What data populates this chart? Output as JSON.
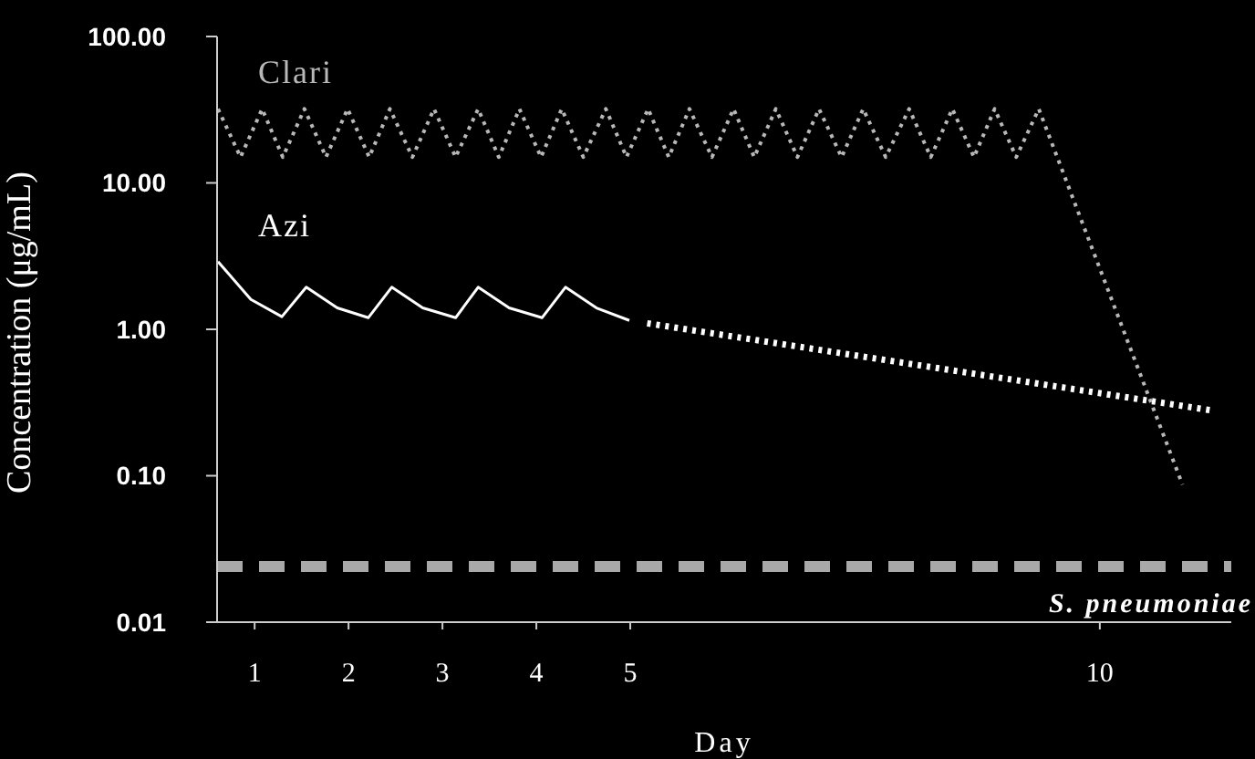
{
  "chart_data": {
    "type": "line",
    "ylabel": "Concentration (μg/mL)",
    "xlabel": "Day",
    "log": "y",
    "grid": false,
    "legend": false,
    "marker": "none",
    "xlim": [
      0.6,
      11.4
    ],
    "xticks": [
      1,
      2,
      3,
      4,
      5,
      10
    ],
    "ylim": [
      0.01,
      100
    ],
    "yticks": [
      {
        "value": 0.01,
        "label": "0.01"
      },
      {
        "value": 0.1,
        "label": "0.10"
      },
      {
        "value": 1,
        "label": "1.00"
      },
      {
        "value": 10,
        "label": "10.00"
      },
      {
        "value": 100,
        "label": "100.00"
      }
    ],
    "series": [
      {
        "name": "Clari",
        "color": "#b8b8b8",
        "line_style": "dotted",
        "x": [
          0.61,
          0.85,
          1.08,
          1.3,
          1.53,
          1.76,
          1.99,
          2.22,
          2.44,
          2.68,
          2.91,
          3.14,
          3.38,
          3.6,
          3.82,
          4.05,
          4.27,
          4.5,
          4.74,
          4.96,
          5.19,
          5.41,
          5.63,
          5.87,
          6.1,
          6.32,
          6.55,
          6.78,
          7.01,
          7.25,
          7.48,
          7.72,
          7.97,
          8.2,
          8.43,
          8.66,
          8.88,
          9.11,
          9.35,
          10.88
        ],
        "values": [
          32,
          15,
          32,
          15,
          32,
          15,
          32,
          15,
          32,
          15,
          32,
          15,
          32,
          15,
          32,
          15,
          32,
          15,
          32,
          15,
          32,
          15,
          32,
          15,
          32,
          15,
          32,
          15,
          32,
          15,
          32,
          15,
          32,
          15,
          32,
          15,
          32,
          15,
          32,
          0.087
        ]
      },
      {
        "name": "Azi",
        "color": "#ffffff",
        "line_style": "solid",
        "x": [
          0.61,
          0.96,
          1.29,
          1.55,
          1.88,
          2.21,
          2.46,
          2.79,
          3.14,
          3.38,
          3.71,
          4.06,
          4.31,
          4.64,
          4.99
        ],
        "values": [
          2.9,
          1.6,
          1.22,
          1.94,
          1.4,
          1.2,
          1.94,
          1.4,
          1.2,
          1.94,
          1.4,
          1.2,
          1.94,
          1.4,
          1.15
        ]
      },
      {
        "color": "#ffffff",
        "line_style": "dotted",
        "x": [
          5.18,
          11.18
        ],
        "values": [
          1.1,
          0.28
        ]
      }
    ],
    "ref_lines": [
      {
        "axis": "y",
        "value": 0.024,
        "label": "S. pneumoniae",
        "color": "#a8a8a8",
        "line_style": "dashed"
      }
    ]
  }
}
